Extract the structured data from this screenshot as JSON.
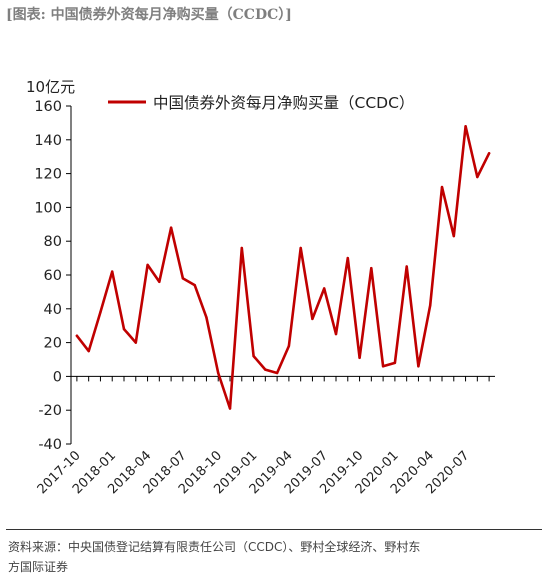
{
  "figure": {
    "title": "[图表: 中国债券外资每月净购买量（CCDC）]",
    "source_line1": "资料来源：中央国债登记结算有限责任公司（CCDC）、野村全球经济、野村东",
    "source_line2": "方国际证券"
  },
  "colors": {
    "line": "#c00000",
    "axis": "#000000",
    "text": "#222222"
  },
  "chart_data": {
    "type": "line",
    "title": "",
    "unit_label": "10亿元",
    "xlabel": "",
    "ylabel": "10亿元",
    "ylim": [
      -40,
      160
    ],
    "yticks": [
      -40,
      -20,
      0,
      20,
      40,
      60,
      80,
      100,
      120,
      140,
      160
    ],
    "grid": false,
    "legend_position": "top",
    "x": [
      "2017-10",
      "2017-11",
      "2017-12",
      "2018-01",
      "2018-02",
      "2018-03",
      "2018-04",
      "2018-05",
      "2018-06",
      "2018-07",
      "2018-08",
      "2018-09",
      "2018-10",
      "2018-11",
      "2018-12",
      "2019-01",
      "2019-02",
      "2019-03",
      "2019-04",
      "2019-05",
      "2019-06",
      "2019-07",
      "2019-08",
      "2019-09",
      "2019-10",
      "2019-11",
      "2019-12",
      "2020-01",
      "2020-02",
      "2020-03",
      "2020-04",
      "2020-05",
      "2020-06",
      "2020-07",
      "2020-08",
      "2020-09"
    ],
    "xtick_labels": [
      "2017-10",
      "2018-01",
      "2018-04",
      "2018-07",
      "2018-10",
      "2019-01",
      "2019-04",
      "2019-07",
      "2019-10",
      "2020-01",
      "2020-04",
      "2020-07"
    ],
    "series": [
      {
        "name": "中国债券外资每月净购买量（CCDC）",
        "values": [
          24,
          15,
          38,
          62,
          28,
          20,
          66,
          56,
          88,
          58,
          54,
          35,
          2,
          -19,
          76,
          12,
          4,
          2,
          18,
          76,
          34,
          52,
          25,
          70,
          11,
          64,
          6,
          8,
          65,
          6,
          42,
          112,
          83,
          148,
          118,
          132
        ]
      }
    ]
  }
}
